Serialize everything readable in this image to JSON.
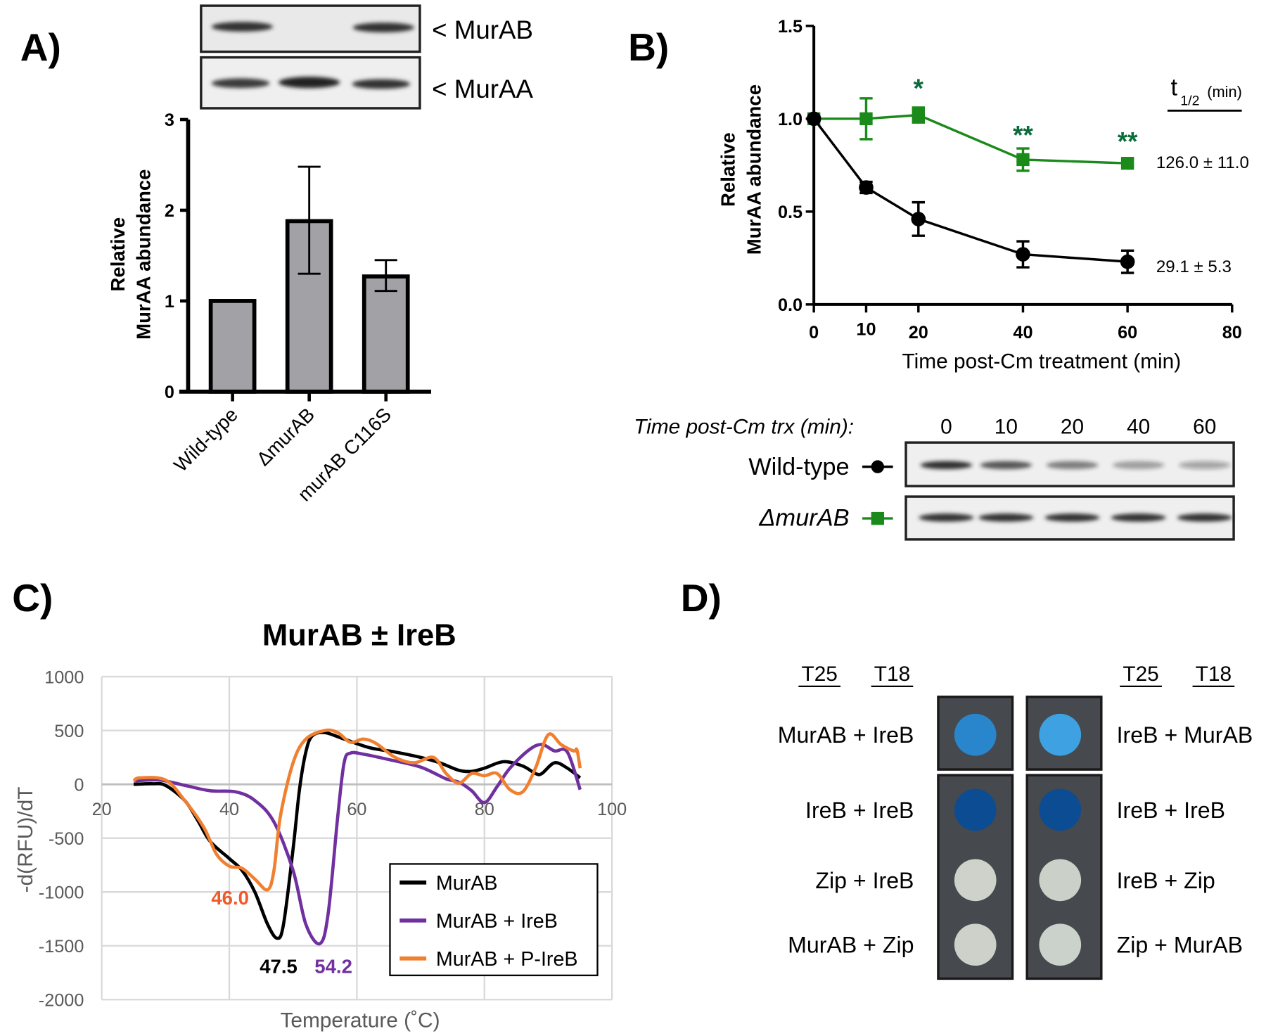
{
  "panels": {
    "a": "A)",
    "b": "B)",
    "c": "C)",
    "d": "D)"
  },
  "panel_a": {
    "blot_labels": [
      "< MurAB",
      "< MurAA"
    ]
  },
  "panel_b": {
    "blot_header": "Time post-Cm trx (min):",
    "blot_lanes": [
      "0",
      "10",
      "20",
      "40",
      "60"
    ],
    "blot_rows": [
      "Wild-type",
      "ΔmurAB"
    ],
    "half_life_header": "t",
    "half_life_sub": "1/2",
    "half_life_unit": "(min)",
    "half_life_values": [
      "126.0 ± 11.0",
      "29.1 ± 5.3"
    ]
  },
  "panel_d": {
    "col_headers": [
      "T25",
      "T18",
      "T25",
      "T18"
    ],
    "left_labels": [
      "MurAB + IreB",
      "IreB + IreB",
      "Zip + IreB",
      "MurAB + Zip"
    ],
    "right_labels": [
      "IreB + MurAB",
      "IreB + IreB",
      "IreB + Zip",
      "Zip + MurAB"
    ],
    "spot_colors_left": [
      "#2a86cc",
      "#0c4c93",
      "#cfd2cb",
      "#cdd1ca"
    ],
    "spot_colors_right": [
      "#3ea2e2",
      "#0c4c93",
      "#cbd0c9",
      "#cbd1cb"
    ]
  },
  "chart_data": [
    {
      "type": "bar",
      "title": "",
      "ylabel_lines": [
        "Relative",
        "MurAA abundance"
      ],
      "xlabel": "",
      "categories": [
        "Wild-type",
        "ΔmurAB",
        "murAB C116S"
      ],
      "values": [
        1.0,
        1.88,
        1.27
      ],
      "error_low": [
        1.0,
        1.3,
        1.11
      ],
      "error_high": [
        1.0,
        2.48,
        1.45
      ],
      "ylim": [
        0,
        3
      ],
      "yticks": [
        "0",
        "1",
        "2",
        "3"
      ],
      "bar_color": "#a2a1a6"
    },
    {
      "type": "line",
      "xlabel": "Time post-Cm treatment (min)",
      "ylabel_lines": [
        "Relative",
        "MurAA abundance"
      ],
      "xlim": [
        0,
        80
      ],
      "ylim": [
        0,
        1.5
      ],
      "xticks": [
        "0",
        "10",
        "20",
        "40",
        "60",
        "80"
      ],
      "yticks": [
        "0.0",
        "0.5",
        "1.0",
        "1.5"
      ],
      "x": [
        0,
        10,
        20,
        40,
        60
      ],
      "series": [
        {
          "name": "Wild-type",
          "color": "#000000",
          "marker": "circle",
          "values": [
            1.0,
            0.63,
            0.46,
            0.27,
            0.23
          ],
          "errors": [
            0,
            0.03,
            0.09,
            0.07,
            0.06
          ]
        },
        {
          "name": "ΔmurAB",
          "color": "#1a8a1a",
          "marker": "square",
          "values": [
            1.0,
            1.0,
            1.02,
            0.78,
            0.76
          ],
          "errors": [
            0,
            0.11,
            0.04,
            0.06,
            0.02
          ]
        }
      ],
      "significance": [
        {
          "x": 20,
          "label": "*"
        },
        {
          "x": 40,
          "label": "**"
        },
        {
          "x": 60,
          "label": "**"
        }
      ],
      "significance_color": "#0b6b3a"
    },
    {
      "type": "line",
      "title": "MurAB ± IreB",
      "xlabel": "Temperature (˚C)",
      "ylabel": "-d(RFU)/dT",
      "xlim": [
        20,
        100
      ],
      "ylim": [
        -2000,
        1000
      ],
      "xticks": [
        "20",
        "40",
        "60",
        "80",
        "100"
      ],
      "yticks": [
        "1000",
        "500",
        "0",
        "-500",
        "-1000",
        "-1500",
        "-2000"
      ],
      "grid": true,
      "legend_position": "bottom-right",
      "series": [
        {
          "name": "MurAB",
          "color": "#000000",
          "points": [
            [
              25,
              0
            ],
            [
              28,
              5
            ],
            [
              30,
              -10
            ],
            [
              33,
              -150
            ],
            [
              35,
              -330
            ],
            [
              37,
              -530
            ],
            [
              40,
              -690
            ],
            [
              42,
              -800
            ],
            [
              44,
              -1000
            ],
            [
              46,
              -1300
            ],
            [
              47.5,
              -1430
            ],
            [
              48.5,
              -1300
            ],
            [
              50,
              -600
            ],
            [
              51,
              -50
            ],
            [
              52,
              300
            ],
            [
              53,
              450
            ],
            [
              55,
              480
            ],
            [
              58,
              420
            ],
            [
              62,
              340
            ],
            [
              66,
              300
            ],
            [
              70,
              250
            ],
            [
              73,
              200
            ],
            [
              76,
              130
            ],
            [
              78,
              120
            ],
            [
              80,
              150
            ],
            [
              83,
              210
            ],
            [
              86,
              170
            ],
            [
              88,
              100
            ],
            [
              89,
              100
            ],
            [
              91,
              200
            ],
            [
              93,
              150
            ],
            [
              95,
              60
            ]
          ]
        },
        {
          "name": "MurAB + IreB",
          "color": "#7030a0",
          "points": [
            [
              25,
              30
            ],
            [
              29,
              40
            ],
            [
              33,
              -10
            ],
            [
              37,
              -60
            ],
            [
              41,
              -70
            ],
            [
              44,
              -150
            ],
            [
              47,
              -350
            ],
            [
              50,
              -800
            ],
            [
              52,
              -1300
            ],
            [
              54.2,
              -1480
            ],
            [
              55.5,
              -1200
            ],
            [
              57,
              -300
            ],
            [
              58,
              200
            ],
            [
              59,
              290
            ],
            [
              61,
              280
            ],
            [
              65,
              230
            ],
            [
              70,
              160
            ],
            [
              74,
              50
            ],
            [
              76,
              20
            ],
            [
              78,
              -60
            ],
            [
              80,
              -170
            ],
            [
              82,
              -20
            ],
            [
              84,
              150
            ],
            [
              87,
              320
            ],
            [
              89,
              370
            ],
            [
              91,
              310
            ],
            [
              93,
              300
            ],
            [
              95,
              -50
            ]
          ]
        },
        {
          "name": "MurAB + P-IreB",
          "color": "#f08030",
          "points": [
            [
              25,
              30
            ],
            [
              26,
              60
            ],
            [
              30,
              40
            ],
            [
              33,
              -150
            ],
            [
              36,
              -400
            ],
            [
              38,
              -650
            ],
            [
              40,
              -760
            ],
            [
              42,
              -780
            ],
            [
              44,
              -880
            ],
            [
              46,
              -980
            ],
            [
              47,
              -800
            ],
            [
              48,
              -300
            ],
            [
              50,
              200
            ],
            [
              52,
              420
            ],
            [
              55,
              500
            ],
            [
              57,
              480
            ],
            [
              59,
              390
            ],
            [
              61,
              420
            ],
            [
              63,
              380
            ],
            [
              66,
              250
            ],
            [
              69,
              200
            ],
            [
              72,
              250
            ],
            [
              74,
              100
            ],
            [
              76,
              10
            ],
            [
              78,
              100
            ],
            [
              80,
              80
            ],
            [
              82,
              100
            ],
            [
              84,
              -50
            ],
            [
              86,
              -70
            ],
            [
              88,
              150
            ],
            [
              90,
              460
            ],
            [
              92,
              370
            ],
            [
              94,
              310
            ],
            [
              94.5,
              320
            ],
            [
              95,
              150
            ]
          ]
        }
      ],
      "annotations": [
        {
          "text": "46.0",
          "color": "#f05a28"
        },
        {
          "text": "47.5",
          "color": "#000000"
        },
        {
          "text": "54.2",
          "color": "#7030a0"
        }
      ]
    }
  ]
}
